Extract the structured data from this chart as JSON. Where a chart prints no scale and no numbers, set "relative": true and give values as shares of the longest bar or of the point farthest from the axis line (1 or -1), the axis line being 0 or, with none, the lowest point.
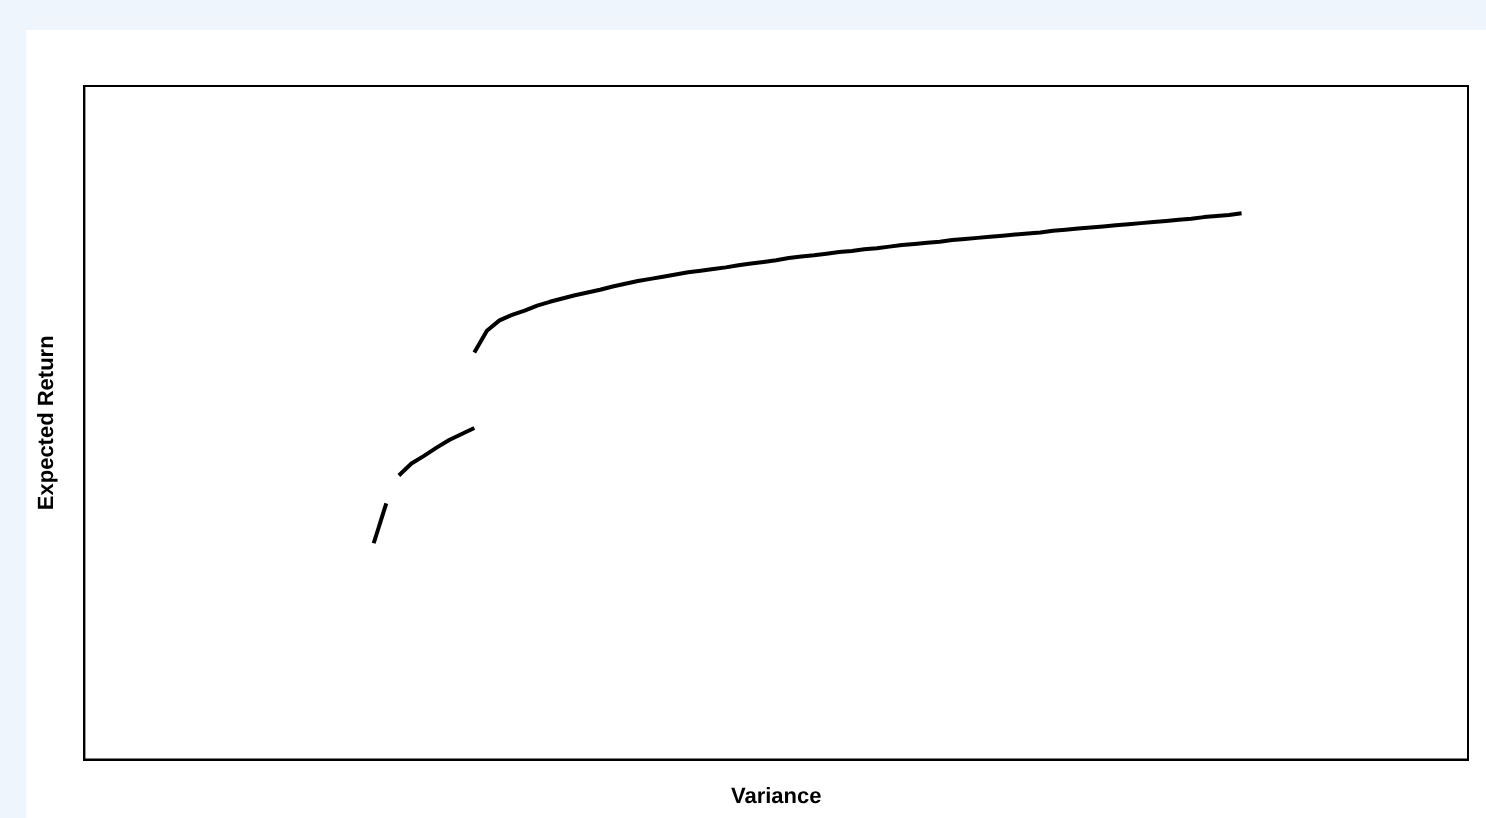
{
  "chart_data": {
    "type": "line",
    "xlabel": "Variance",
    "ylabel": "Expected Return",
    "relative": true,
    "marker": "none",
    "categories": [
      null,
      null,
      null,
      null,
      null,
      null,
      null,
      null,
      null,
      null,
      null,
      null,
      null,
      null,
      null,
      null,
      null,
      null,
      null,
      null,
      null,
      null,
      null,
      null,
      null,
      null,
      null,
      null,
      null,
      null,
      null,
      null,
      null,
      null,
      null,
      null,
      null,
      null,
      null,
      null,
      null,
      null,
      null,
      null,
      null,
      null,
      null,
      null,
      null,
      null,
      null,
      null,
      null,
      null,
      null,
      null,
      null,
      null,
      null,
      null,
      null,
      null,
      null,
      null,
      null,
      null,
      null,
      null,
      null,
      null,
      null,
      null,
      null,
      null,
      null,
      null,
      null,
      null,
      null,
      null,
      null,
      null,
      null,
      null,
      null,
      null,
      null,
      null,
      null,
      null,
      null,
      null,
      null,
      null,
      null,
      null,
      null,
      null,
      null,
      null,
      null,
      null,
      null,
      null,
      null,
      null,
      null,
      null,
      null,
      null,
      null
    ],
    "series": [
      {
        "color": "#000000",
        "values": [
          null,
          null,
          null,
          null,
          null,
          null,
          null,
          null,
          null,
          null,
          null,
          null,
          null,
          null,
          null,
          null,
          null,
          null,
          null,
          null,
          null,
          null,
          null,
          0.396,
          0.469,
          null,
          null,
          null,
          null,
          null,
          null,
          null,
          null,
          null,
          null,
          null,
          null,
          null,
          null,
          null,
          null,
          null,
          null,
          null,
          null,
          null,
          null,
          null,
          null,
          null,
          null,
          null,
          null,
          null,
          null,
          null,
          null,
          null,
          null,
          null,
          null,
          null,
          null,
          null,
          null,
          null,
          null,
          null,
          null,
          null,
          null,
          null,
          null,
          null,
          null,
          null,
          null,
          null,
          null,
          null,
          null,
          null,
          null,
          null,
          null,
          null,
          null,
          null,
          null,
          null,
          null,
          null,
          null,
          null,
          null,
          null,
          null,
          null,
          null,
          null,
          null,
          null,
          null,
          null,
          null,
          null,
          null,
          null,
          null,
          null,
          null
        ]
      },
      {
        "color": "#000000",
        "values": [
          null,
          null,
          null,
          null,
          null,
          null,
          null,
          null,
          null,
          null,
          null,
          null,
          null,
          null,
          null,
          null,
          null,
          null,
          null,
          null,
          null,
          null,
          null,
          null,
          null,
          0.52,
          0.542,
          0.556,
          0.571,
          0.585,
          0.596,
          0.607,
          null,
          null,
          null,
          null,
          null,
          null,
          null,
          null,
          null,
          null,
          null,
          null,
          null,
          null,
          null,
          null,
          null,
          null,
          null,
          null,
          null,
          null,
          null,
          null,
          null,
          null,
          null,
          null,
          null,
          null,
          null,
          null,
          null,
          null,
          null,
          null,
          null,
          null,
          null,
          null,
          null,
          null,
          null,
          null,
          null,
          null,
          null,
          null,
          null,
          null,
          null,
          null,
          null,
          null,
          null,
          null,
          null,
          null,
          null,
          null,
          null,
          null,
          null,
          null,
          null,
          null,
          null,
          null,
          null,
          null,
          null,
          null,
          null,
          null,
          null,
          null,
          null,
          null,
          null
        ]
      },
      {
        "color": "#000000",
        "values": [
          null,
          null,
          null,
          null,
          null,
          null,
          null,
          null,
          null,
          null,
          null,
          null,
          null,
          null,
          null,
          null,
          null,
          null,
          null,
          null,
          null,
          null,
          null,
          null,
          null,
          null,
          null,
          null,
          null,
          null,
          null,
          0.745,
          0.785,
          0.804,
          0.814,
          0.822,
          0.831,
          0.838,
          0.844,
          0.85,
          0.855,
          0.86,
          0.866,
          0.871,
          0.876,
          0.88,
          0.884,
          0.888,
          0.892,
          0.895,
          0.898,
          0.901,
          0.905,
          0.908,
          0.911,
          0.914,
          0.918,
          0.921,
          0.923,
          0.926,
          0.929,
          0.931,
          0.934,
          0.936,
          0.939,
          0.942,
          0.944,
          0.946,
          0.948,
          0.951,
          0.953,
          0.955,
          0.957,
          0.959,
          0.961,
          0.963,
          0.965,
          0.968,
          0.97,
          0.972,
          0.974,
          0.976,
          0.978,
          0.98,
          0.982,
          0.984,
          0.986,
          0.988,
          0.99,
          0.993,
          0.995,
          0.997,
          1.0,
          null,
          null,
          null,
          null,
          null,
          null,
          null,
          null,
          null,
          null,
          null,
          null,
          null,
          null,
          null,
          null,
          null,
          null
        ]
      }
    ]
  }
}
